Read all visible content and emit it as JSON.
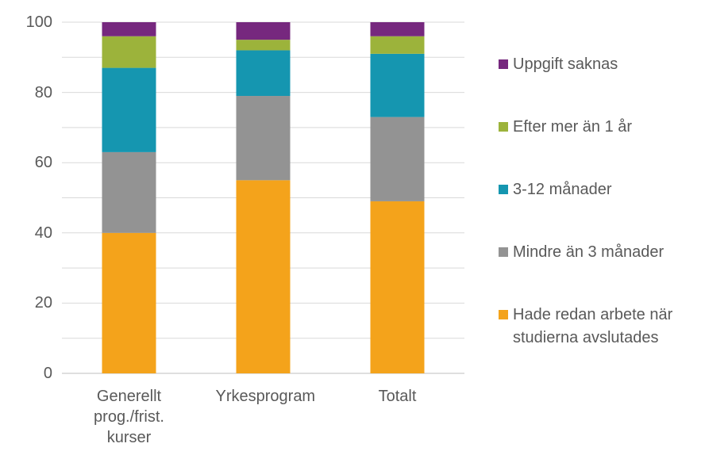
{
  "chart_data": {
    "type": "stacked_bar",
    "categories": [
      "Generellt prog./frist. kurser",
      "Yrkesprogram",
      "Totalt"
    ],
    "series": [
      {
        "name": "Hade redan arbete när studierna avslutades",
        "color": "#f4a31b",
        "values": [
          40,
          55,
          49
        ]
      },
      {
        "name": "Mindre än 3 månader",
        "color": "#939393",
        "values": [
          23,
          24,
          24
        ]
      },
      {
        "name": "3-12 månader",
        "color": "#1596b0",
        "values": [
          24,
          13,
          18
        ]
      },
      {
        "name": "Efter mer än 1 år",
        "color": "#9cb33b",
        "values": [
          9,
          3,
          5
        ]
      },
      {
        "name": "Uppgift saknas",
        "color": "#76287e",
        "values": [
          4,
          5,
          4
        ]
      }
    ],
    "ylim": [
      0,
      100
    ],
    "yticks": [
      0,
      20,
      40,
      60,
      80,
      100
    ],
    "minor_yticks": [
      10,
      30,
      50,
      70,
      90
    ],
    "grid": true,
    "legend": "right"
  }
}
